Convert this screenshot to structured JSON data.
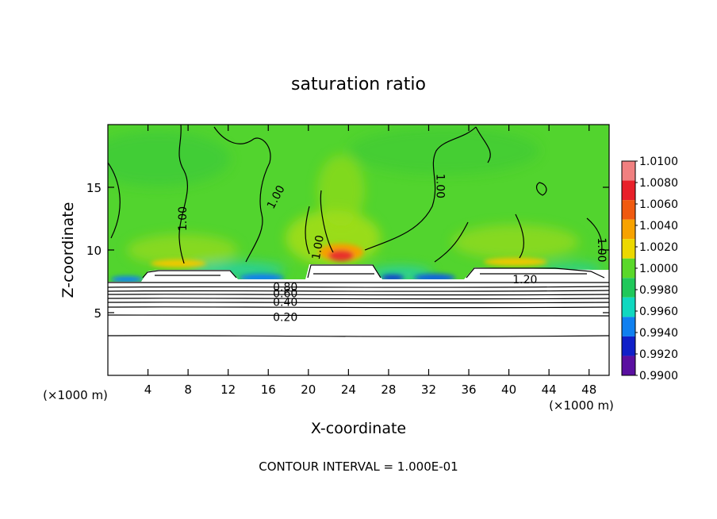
{
  "chart_data": {
    "type": "heatmap",
    "title": "saturation ratio",
    "xlabel": "X-coordinate",
    "ylabel": "Z-coordinate",
    "x_unit_left": "(×1000 m)",
    "x_unit_right": "(×1000 m)",
    "xlim": [
      0,
      50
    ],
    "ylim": [
      0,
      20
    ],
    "x_ticks": [
      4,
      8,
      12,
      16,
      20,
      24,
      28,
      32,
      36,
      40,
      44,
      48
    ],
    "y_ticks": [
      5,
      10,
      15
    ],
    "footer": "CONTOUR INTERVAL = 1.000E-01",
    "contour_interval": 0.1,
    "contour_labels": [
      {
        "text": "1.00",
        "x": 7.5,
        "z": 12.5,
        "rot": -90
      },
      {
        "text": "1.00",
        "x": 16.8,
        "z": 14.2,
        "rot": -62
      },
      {
        "text": "1.00",
        "x": 21.0,
        "z": 10.2,
        "rot": -80
      },
      {
        "text": "1.00",
        "x": 33.1,
        "z": 15.1,
        "rot": 90
      },
      {
        "text": "1.00",
        "x": 49.2,
        "z": 10.0,
        "rot": 90
      },
      {
        "text": "1.20",
        "x": 41.6,
        "z": 7.6,
        "rot": 0
      },
      {
        "text": "0.80",
        "x": 17.7,
        "z": 7.0,
        "rot": 0
      },
      {
        "text": "0.60",
        "x": 17.7,
        "z": 6.5,
        "rot": 0
      },
      {
        "text": "0.40",
        "x": 17.7,
        "z": 5.8,
        "rot": 0
      },
      {
        "text": "0.20",
        "x": 17.7,
        "z": 4.6,
        "rot": 0
      }
    ],
    "colorbar": {
      "levels": [
        "1.0100",
        "1.0080",
        "1.0060",
        "1.0040",
        "1.0020",
        "1.0000",
        "0.9980",
        "0.9960",
        "0.9940",
        "0.9920",
        "0.9900"
      ],
      "colors": [
        "#f08080",
        "#e8202a",
        "#f05a10",
        "#f7a200",
        "#ecd800",
        "#5ad82a",
        "#20c85a",
        "#10d8c0",
        "#1080f0",
        "#1020c8",
        "#5a10a0"
      ]
    }
  }
}
